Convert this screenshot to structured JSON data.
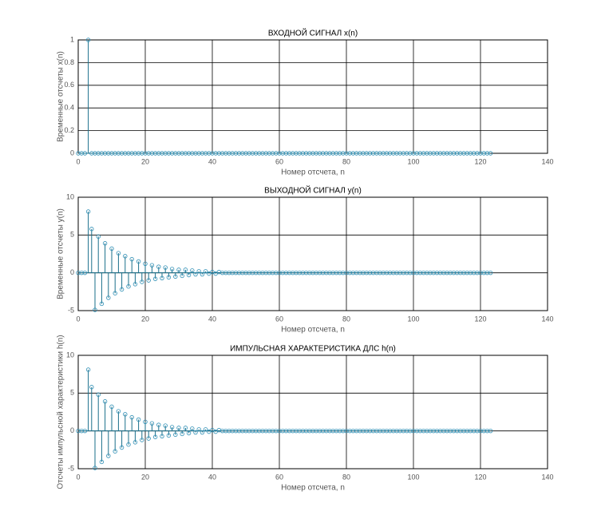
{
  "chart_data": [
    {
      "type": "stem",
      "title": "ВХОДНОЙ СИГНАЛ x(n)",
      "xlabel": "Номер отсчета, n",
      "ylabel": "Временные отсчеты x(n)",
      "color": "#2f8fb5",
      "xlim": [
        0,
        140
      ],
      "xticks": [
        0,
        20,
        40,
        60,
        80,
        100,
        120,
        140
      ],
      "ylim": [
        0,
        1
      ],
      "yticks": [
        0,
        0.2,
        0.4,
        0.6,
        0.8,
        1
      ],
      "grid": true,
      "x": [
        0,
        1,
        2,
        3,
        4,
        5,
        6,
        7,
        8,
        9,
        10,
        11,
        12,
        13,
        14,
        15,
        16,
        17,
        18,
        19,
        20,
        21,
        22,
        23,
        24,
        25,
        26,
        27,
        28,
        29,
        30,
        31,
        32,
        33,
        34,
        35,
        36,
        37,
        38,
        39,
        40,
        41,
        42,
        43,
        44,
        45,
        46,
        47,
        48,
        49,
        50,
        51,
        52,
        53,
        54,
        55,
        56,
        57,
        58,
        59,
        60,
        61,
        62,
        63,
        64,
        65,
        66,
        67,
        68,
        69,
        70,
        71,
        72,
        73,
        74,
        75,
        76,
        77,
        78,
        79,
        80,
        81,
        82,
        83,
        84,
        85,
        86,
        87,
        88,
        89,
        90,
        91,
        92,
        93,
        94,
        95,
        96,
        97,
        98,
        99,
        100,
        101,
        102,
        103,
        104,
        105,
        106,
        107,
        108,
        109,
        110,
        111,
        112,
        113,
        114,
        115,
        116,
        117,
        118,
        119,
        120,
        121,
        122,
        123
      ],
      "values": [
        0,
        0,
        0,
        1,
        0,
        0,
        0,
        0,
        0,
        0,
        0,
        0,
        0,
        0,
        0,
        0,
        0,
        0,
        0,
        0,
        0,
        0,
        0,
        0,
        0,
        0,
        0,
        0,
        0,
        0,
        0,
        0,
        0,
        0,
        0,
        0,
        0,
        0,
        0,
        0,
        0,
        0,
        0,
        0,
        0,
        0,
        0,
        0,
        0,
        0,
        0,
        0,
        0,
        0,
        0,
        0,
        0,
        0,
        0,
        0,
        0,
        0,
        0,
        0,
        0,
        0,
        0,
        0,
        0,
        0,
        0,
        0,
        0,
        0,
        0,
        0,
        0,
        0,
        0,
        0,
        0,
        0,
        0,
        0,
        0,
        0,
        0,
        0,
        0,
        0,
        0,
        0,
        0,
        0,
        0,
        0,
        0,
        0,
        0,
        0,
        0,
        0,
        0,
        0,
        0,
        0,
        0,
        0,
        0,
        0,
        0,
        0,
        0,
        0,
        0,
        0,
        0,
        0,
        0,
        0,
        0,
        0,
        0,
        0
      ]
    },
    {
      "type": "stem",
      "title": "ВЫХОДНОЙ СИГНАЛ y(n)",
      "xlabel": "Номер отсчета, n",
      "ylabel": "Временные отсчеты y(n)",
      "color": "#2f8fb5",
      "xlim": [
        0,
        140
      ],
      "xticks": [
        0,
        20,
        40,
        60,
        80,
        100,
        120,
        140
      ],
      "ylim": [
        -5,
        10
      ],
      "yticks": [
        -5,
        0,
        5,
        10
      ],
      "grid": true,
      "x": [
        0,
        1,
        2,
        3,
        4,
        5,
        6,
        7,
        8,
        9,
        10,
        11,
        12,
        13,
        14,
        15,
        16,
        17,
        18,
        19,
        20,
        21,
        22,
        23,
        24,
        25,
        26,
        27,
        28,
        29,
        30,
        31,
        32,
        33,
        34,
        35,
        36,
        37,
        38,
        39,
        40,
        41,
        42,
        43,
        44,
        45,
        46,
        47,
        48,
        49,
        50,
        51,
        52,
        53,
        54,
        55,
        56,
        57,
        58,
        59,
        60,
        61,
        62,
        63,
        64,
        65,
        66,
        67,
        68,
        69,
        70,
        71,
        72,
        73,
        74,
        75,
        76,
        77,
        78,
        79,
        80,
        81,
        82,
        83,
        84,
        85,
        86,
        87,
        88,
        89,
        90,
        91,
        92,
        93,
        94,
        95,
        96,
        97,
        98,
        99,
        100,
        101,
        102,
        103,
        104,
        105,
        106,
        107,
        108,
        109,
        110,
        111,
        112,
        113,
        114,
        115,
        116,
        117,
        118,
        119,
        120,
        121,
        122,
        123
      ],
      "values": [
        0,
        0,
        0,
        8.1,
        5.8,
        -4.9,
        4.8,
        -4.1,
        3.9,
        -3.3,
        3.2,
        -2.7,
        2.6,
        -2.2,
        2.2,
        -1.8,
        1.8,
        -1.5,
        1.5,
        -1.2,
        1.2,
        -1.0,
        1.0,
        -0.8,
        0.8,
        -0.7,
        0.7,
        -0.6,
        0.5,
        -0.5,
        0.4,
        -0.4,
        0.4,
        -0.3,
        0.3,
        -0.2,
        0.2,
        -0.2,
        0.2,
        -0.1,
        0.1,
        -0.1,
        0.1,
        0,
        0,
        0,
        0,
        0,
        0,
        0,
        0,
        0,
        0,
        0,
        0,
        0,
        0,
        0,
        0,
        0,
        0,
        0,
        0,
        0,
        0,
        0,
        0,
        0,
        0,
        0,
        0,
        0,
        0,
        0,
        0,
        0,
        0,
        0,
        0,
        0,
        0,
        0,
        0,
        0,
        0,
        0,
        0,
        0,
        0,
        0,
        0,
        0,
        0,
        0,
        0,
        0,
        0,
        0,
        0,
        0,
        0,
        0,
        0,
        0,
        0,
        0,
        0,
        0,
        0,
        0,
        0,
        0,
        0,
        0,
        0,
        0,
        0,
        0,
        0,
        0,
        0,
        0,
        0,
        0
      ]
    },
    {
      "type": "stem",
      "title": "ИМПУЛЬСНАЯ ХАРАКТЕРИСТИКА ДЛС h(n)",
      "xlabel": "Номер отсчета, n",
      "ylabel": "Отсчеты импульсной характеристики h(n)",
      "color": "#2f8fb5",
      "xlim": [
        0,
        140
      ],
      "xticks": [
        0,
        20,
        40,
        60,
        80,
        100,
        120,
        140
      ],
      "ylim": [
        -5,
        10
      ],
      "yticks": [
        -5,
        0,
        5,
        10
      ],
      "grid": true,
      "x": [
        0,
        1,
        2,
        3,
        4,
        5,
        6,
        7,
        8,
        9,
        10,
        11,
        12,
        13,
        14,
        15,
        16,
        17,
        18,
        19,
        20,
        21,
        22,
        23,
        24,
        25,
        26,
        27,
        28,
        29,
        30,
        31,
        32,
        33,
        34,
        35,
        36,
        37,
        38,
        39,
        40,
        41,
        42,
        43,
        44,
        45,
        46,
        47,
        48,
        49,
        50,
        51,
        52,
        53,
        54,
        55,
        56,
        57,
        58,
        59,
        60,
        61,
        62,
        63,
        64,
        65,
        66,
        67,
        68,
        69,
        70,
        71,
        72,
        73,
        74,
        75,
        76,
        77,
        78,
        79,
        80,
        81,
        82,
        83,
        84,
        85,
        86,
        87,
        88,
        89,
        90,
        91,
        92,
        93,
        94,
        95,
        96,
        97,
        98,
        99,
        100,
        101,
        102,
        103,
        104,
        105,
        106,
        107,
        108,
        109,
        110,
        111,
        112,
        113,
        114,
        115,
        116,
        117,
        118,
        119,
        120,
        121,
        122,
        123
      ],
      "values": [
        0,
        0,
        0,
        8.1,
        5.8,
        -4.9,
        4.8,
        -4.1,
        3.9,
        -3.3,
        3.2,
        -2.7,
        2.6,
        -2.2,
        2.2,
        -1.8,
        1.8,
        -1.5,
        1.5,
        -1.2,
        1.2,
        -1.0,
        1.0,
        -0.8,
        0.8,
        -0.7,
        0.7,
        -0.6,
        0.5,
        -0.5,
        0.4,
        -0.4,
        0.4,
        -0.3,
        0.3,
        -0.2,
        0.2,
        -0.2,
        0.2,
        -0.1,
        0.1,
        -0.1,
        0.1,
        0,
        0,
        0,
        0,
        0,
        0,
        0,
        0,
        0,
        0,
        0,
        0,
        0,
        0,
        0,
        0,
        0,
        0,
        0,
        0,
        0,
        0,
        0,
        0,
        0,
        0,
        0,
        0,
        0,
        0,
        0,
        0,
        0,
        0,
        0,
        0,
        0,
        0,
        0,
        0,
        0,
        0,
        0,
        0,
        0,
        0,
        0,
        0,
        0,
        0,
        0,
        0,
        0,
        0,
        0,
        0,
        0,
        0,
        0,
        0,
        0,
        0,
        0,
        0,
        0,
        0,
        0,
        0,
        0,
        0,
        0,
        0,
        0,
        0,
        0,
        0,
        0,
        0,
        0,
        0,
        0
      ]
    }
  ]
}
